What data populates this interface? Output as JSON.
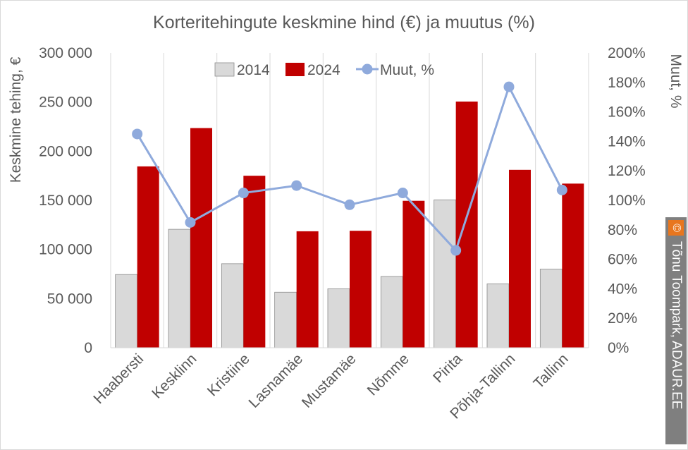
{
  "chart_data": {
    "type": "bar",
    "title": "Korteritehingute keskmine hind (€) ja muutus (%)",
    "ylabel": "Keskmine tehing, €",
    "y2label": "Muut, %",
    "categories": [
      "Haabersti",
      "Kesklinn",
      "Kristiine",
      "Lasnamäe",
      "Mustamäe",
      "Nõmme",
      "Pirita",
      "Põhja-Tallinn",
      "Tallinn"
    ],
    "ylim": [
      0,
      300000
    ],
    "y2lim": [
      0,
      200
    ],
    "yticks": [
      "0",
      "50 000",
      "100 000",
      "150 000",
      "200 000",
      "250 000",
      "300 000"
    ],
    "y2ticks": [
      "0%",
      "20%",
      "40%",
      "60%",
      "80%",
      "100%",
      "120%",
      "140%",
      "160%",
      "180%",
      "200%"
    ],
    "legend_position": "top",
    "grid": "vertical",
    "series": [
      {
        "name": "2014",
        "kind": "bar",
        "color": "#d9d9d9",
        "values": [
          74500,
          120500,
          85500,
          56500,
          60000,
          72500,
          150500,
          65000,
          80000
        ]
      },
      {
        "name": "2024",
        "kind": "bar",
        "color": "#c00000",
        "values": [
          184500,
          223500,
          175000,
          118500,
          119000,
          149500,
          250500,
          181000,
          167000
        ]
      },
      {
        "name": "Muut, %",
        "kind": "line",
        "axis": "right",
        "color": "#8faadc",
        "values": [
          145,
          85,
          105,
          110,
          97,
          105,
          66,
          177,
          107
        ]
      }
    ]
  },
  "credit": {
    "symbol": "©",
    "text": "Tõnu Toompark, ADAUR.EE"
  }
}
